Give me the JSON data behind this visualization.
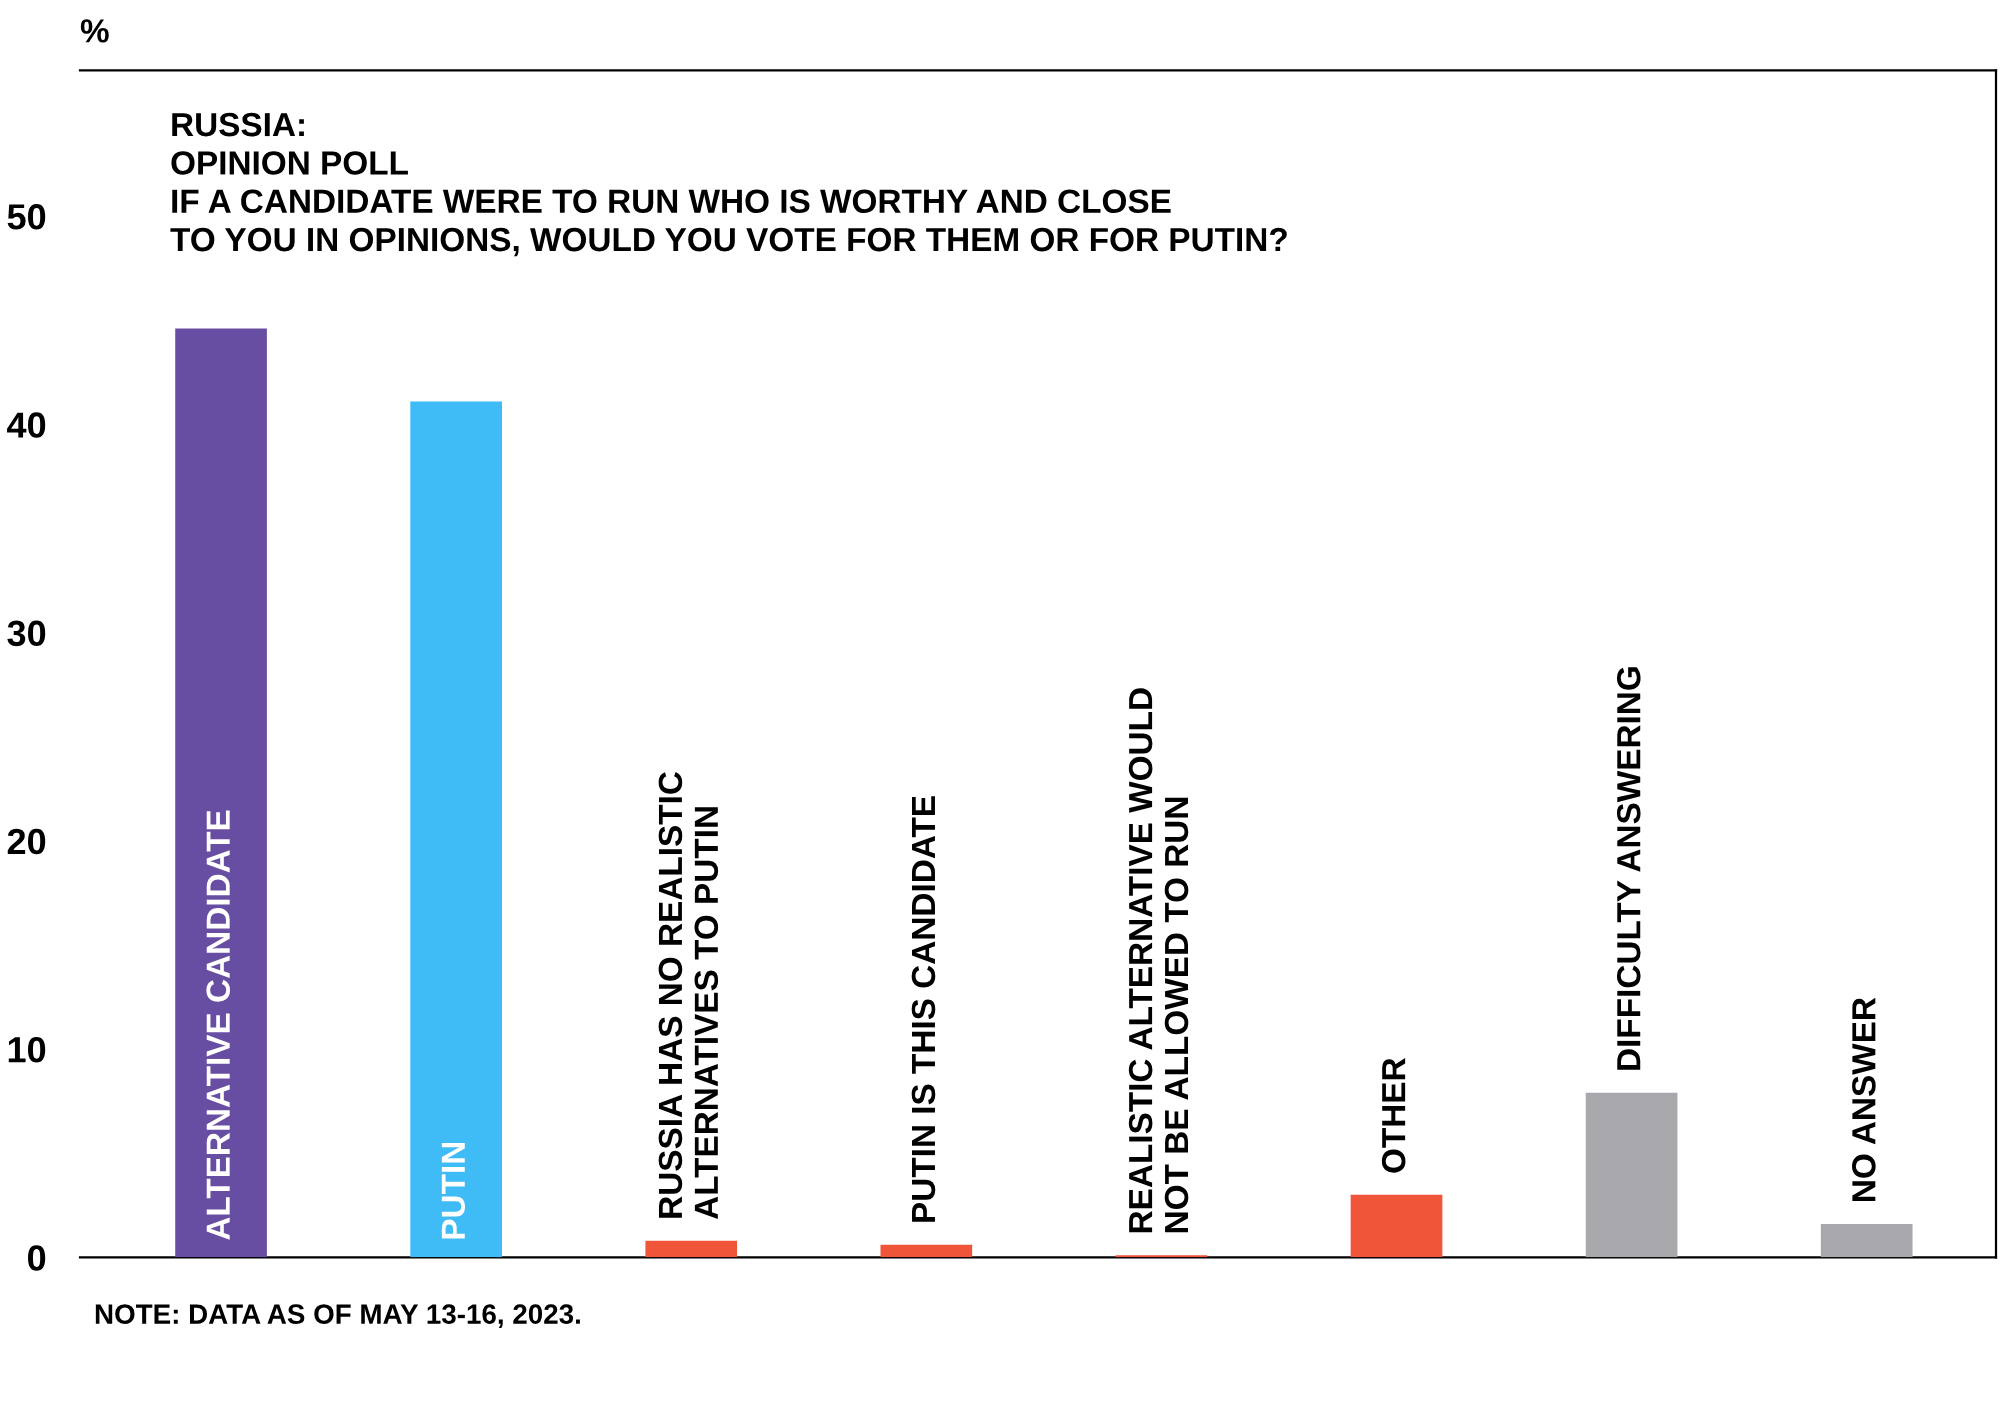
{
  "chart_data": {
    "type": "bar",
    "title": "RUSSIA:\nOPINION POLL\nIF A CANDIDATE WERE TO RUN WHO IS WORTHY AND CLOSE\nTO YOU IN OPINIONS, WOULD YOU VOTE FOR THEM OR FOR PUTIN?",
    "ylabel": "%",
    "categories": [
      "ALTERNATIVE CANDIDATE",
      "PUTIN",
      "RUSSIA HAS NO REALISTIC\nALTERNATIVES TO PUTIN",
      "PUTIN IS THIS CANDIDATE",
      "REALISTIC ALTERNATIVE WOULD\nNOT BE ALLOWED TO RUN",
      "OTHER",
      "DIFFICULTY ANSWERING",
      "NO ANSWER"
    ],
    "values": [
      44.6,
      41.1,
      0.8,
      0.6,
      0.1,
      3.0,
      7.9,
      1.6
    ],
    "colors": [
      "#684ea2",
      "#3fbbf6",
      "#f0553a",
      "#f0553a",
      "#f0553a",
      "#f0553a",
      "#a8a8ac",
      "#a8a8ac"
    ],
    "ylim": [
      0,
      57
    ],
    "yticks": [
      0,
      10,
      20,
      30,
      40,
      50
    ],
    "grid": false,
    "legend": false,
    "annotations": [
      "NOTE: DATA AS OF MAY 13-16, 2023."
    ]
  }
}
